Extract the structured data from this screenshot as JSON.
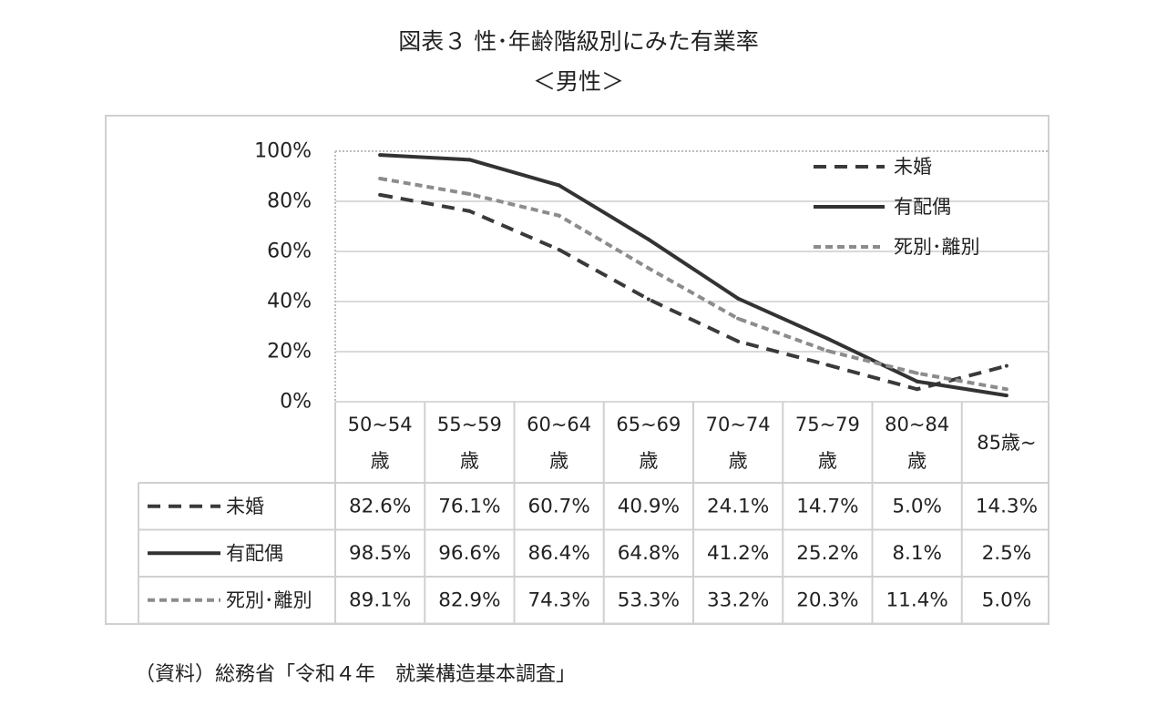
{
  "title": "図表３ 性･年齢階級別にみた有業率",
  "subtitle": "＜男性＞",
  "source": "（資料）総務省「令和４年　就業構造基本調査」",
  "chart_data": {
    "type": "line",
    "categories": [
      {
        "line1": "50~54",
        "line2": "歳"
      },
      {
        "line1": "55~59",
        "line2": "歳"
      },
      {
        "line1": "60~64",
        "line2": "歳"
      },
      {
        "line1": "65~69",
        "line2": "歳"
      },
      {
        "line1": "70~74",
        "line2": "歳"
      },
      {
        "line1": "75~79",
        "line2": "歳"
      },
      {
        "line1": "80~84",
        "line2": "歳"
      },
      {
        "line1": "85歳~",
        "line2": ""
      }
    ],
    "y_ticks": [
      "0%",
      "20%",
      "40%",
      "60%",
      "80%",
      "100%"
    ],
    "ylim": [
      0,
      100
    ],
    "grid": true,
    "legend_position": "top-right",
    "series": [
      {
        "name": "未婚",
        "style": "dashed",
        "color": "#3a3a3a",
        "values": [
          82.6,
          76.1,
          60.7,
          40.9,
          24.1,
          14.7,
          5.0,
          14.3
        ],
        "labels": [
          "82.6%",
          "76.1%",
          "60.7%",
          "40.9%",
          "24.1%",
          "14.7%",
          "5.0%",
          "14.3%"
        ]
      },
      {
        "name": "有配偶",
        "style": "solid",
        "color": "#333333",
        "values": [
          98.5,
          96.6,
          86.4,
          64.8,
          41.2,
          25.2,
          8.1,
          2.5
        ],
        "labels": [
          "98.5%",
          "96.6%",
          "86.4%",
          "64.8%",
          "41.2%",
          "25.2%",
          "8.1%",
          "2.5%"
        ]
      },
      {
        "name": "死別･離別",
        "style": "short-dashed",
        "color": "#8c8c8c",
        "values": [
          89.1,
          82.9,
          74.3,
          53.3,
          33.2,
          20.3,
          11.4,
          5.0
        ],
        "labels": [
          "89.1%",
          "82.9%",
          "74.3%",
          "53.3%",
          "33.2%",
          "20.3%",
          "11.4%",
          "5.0%"
        ]
      }
    ]
  }
}
